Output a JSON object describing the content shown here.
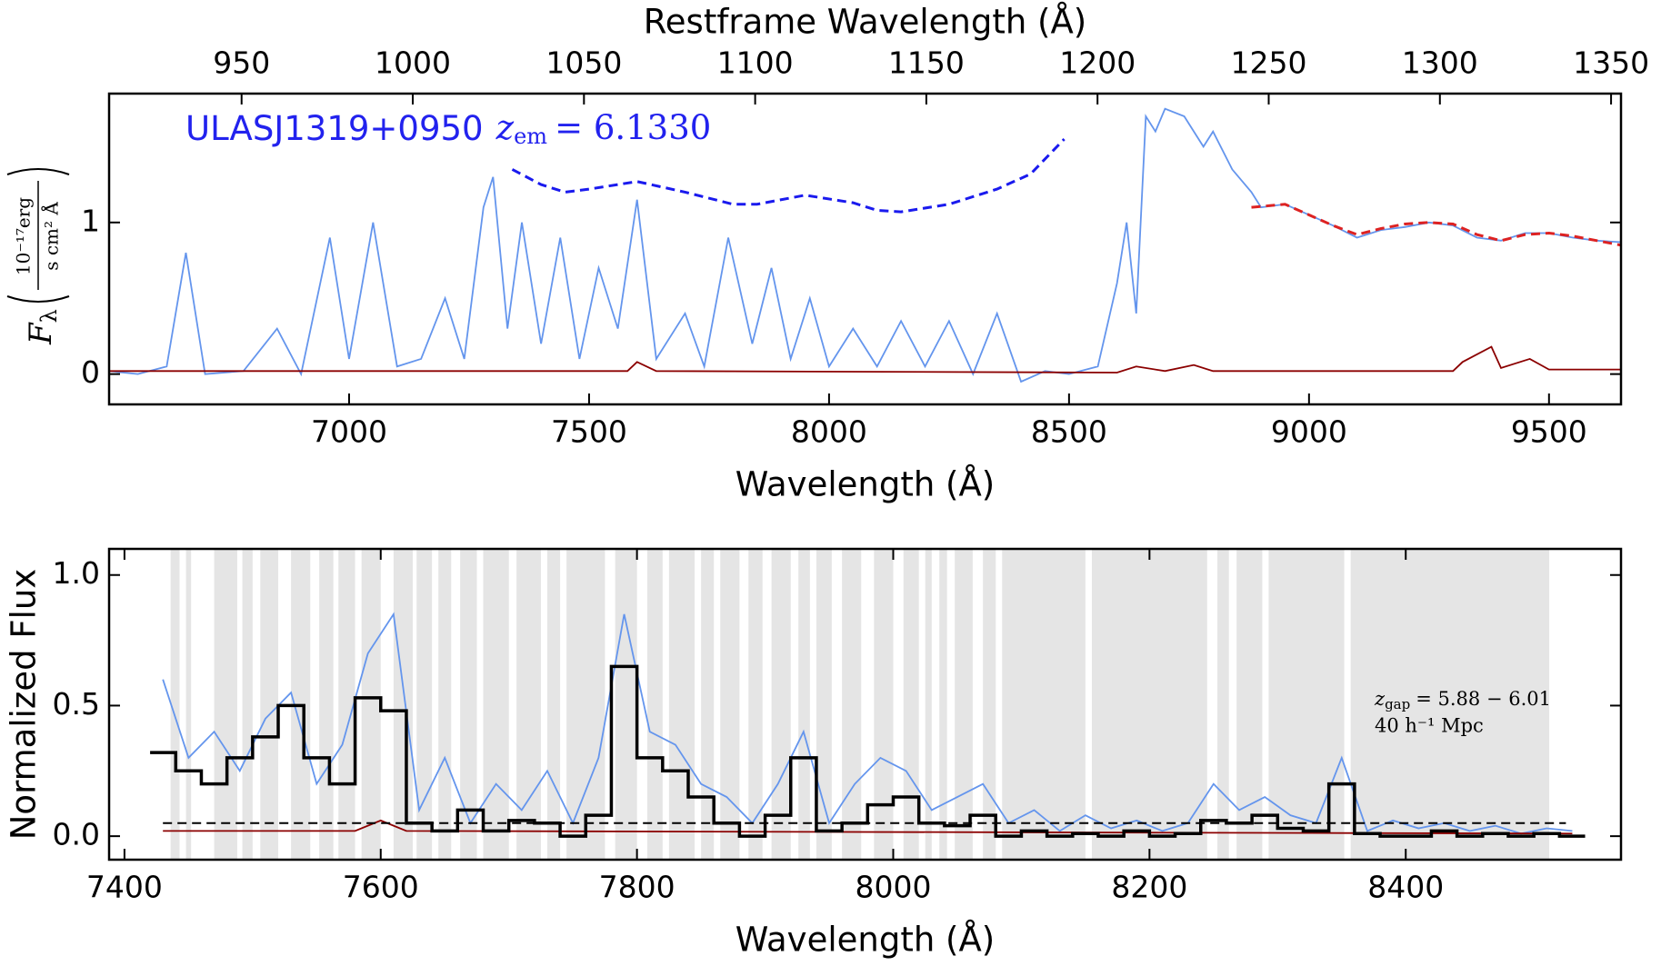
{
  "chart_data": [
    {
      "type": "line",
      "x2label": "Restframe Wavelength (Å)",
      "xlabel": "Wavelength (Å)",
      "ylabel": {
        "symbol": "F",
        "sub": "λ",
        "num": "10⁻¹⁷erg",
        "den": "s cm² Å"
      },
      "annotation": {
        "name": "ULASJ1319+0950",
        "symbol": "z",
        "sub": "em",
        "rel": "= 6.1330"
      },
      "xlim": [
        6500,
        9650
      ],
      "ylim": [
        -0.2,
        1.85
      ],
      "x2lim": [
        911.3,
        1352.9
      ],
      "xticks": [
        7000,
        7500,
        8000,
        8500,
        9000,
        9500
      ],
      "x2ticks": [
        950,
        {
          "value": 1000,
          "label": "1000"
        },
        1050,
        1100,
        1150,
        1200,
        1250,
        1300,
        1350
      ],
      "yticks": [
        0,
        1
      ],
      "series": [
        {
          "color": "#6495ed",
          "x": [
            6500,
            6560,
            6620,
            6660,
            6700,
            6780,
            6850,
            6900,
            6960,
            7000,
            7050,
            7100,
            7150,
            7200,
            7240,
            7280,
            7300,
            7330,
            7360,
            7400,
            7440,
            7480,
            7520,
            7560,
            7600,
            7640,
            7700,
            7740,
            7790,
            7840,
            7880,
            7920,
            7960,
            8000,
            8050,
            8100,
            8150,
            8200,
            8250,
            8300,
            8350,
            8400,
            8450,
            8500,
            8560,
            8600,
            8620,
            8640,
            8660,
            8680,
            8700,
            8740,
            8780,
            8800,
            8840,
            8880,
            8900,
            8950,
            9000,
            9050,
            9100,
            9150,
            9200,
            9250,
            9300,
            9350,
            9400,
            9450,
            9500,
            9550,
            9600,
            9650
          ],
          "values": [
            0.02,
            0.0,
            0.05,
            0.8,
            0.0,
            0.02,
            0.3,
            0.0,
            0.9,
            0.1,
            1.0,
            0.05,
            0.1,
            0.5,
            0.1,
            1.1,
            1.3,
            0.3,
            1.0,
            0.2,
            0.9,
            0.1,
            0.7,
            0.3,
            1.15,
            0.1,
            0.4,
            0.05,
            0.9,
            0.2,
            0.7,
            0.1,
            0.5,
            0.05,
            0.3,
            0.05,
            0.35,
            0.05,
            0.35,
            0.0,
            0.4,
            -0.05,
            0.02,
            0.0,
            0.05,
            0.6,
            1.0,
            0.4,
            1.7,
            1.6,
            1.75,
            1.7,
            1.5,
            1.6,
            1.35,
            1.2,
            1.1,
            1.12,
            1.05,
            0.98,
            0.9,
            0.95,
            0.97,
            1.0,
            0.98,
            0.9,
            0.88,
            0.93,
            0.93,
            0.9,
            0.88,
            0.87
          ]
        },
        {
          "color": "#8b0000",
          "x": [
            6500,
            7000,
            7580,
            7600,
            7640,
            8600,
            8640,
            8700,
            8760,
            8800,
            9300,
            9320,
            9380,
            9400,
            9460,
            9500,
            9650
          ],
          "values": [
            0.02,
            0.02,
            0.02,
            0.08,
            0.02,
            0.01,
            0.05,
            0.02,
            0.06,
            0.02,
            0.02,
            0.08,
            0.18,
            0.04,
            0.1,
            0.03,
            0.03
          ]
        },
        {
          "color": "#dd2222",
          "dash": true,
          "x": [
            8880,
            8950,
            9000,
            9050,
            9100,
            9150,
            9200,
            9250,
            9300,
            9350,
            9400,
            9450,
            9500,
            9550,
            9600,
            9650
          ],
          "values": [
            1.1,
            1.12,
            1.05,
            0.98,
            0.92,
            0.96,
            0.99,
            1.0,
            0.99,
            0.92,
            0.88,
            0.92,
            0.93,
            0.91,
            0.88,
            0.85
          ]
        },
        {
          "color": "#1a1aee",
          "dash": true,
          "x": [
            7340,
            7400,
            7450,
            7500,
            7600,
            7700,
            7800,
            7850,
            7950,
            8050,
            8100,
            8150,
            8250,
            8350,
            8420,
            8490
          ],
          "values": [
            1.35,
            1.25,
            1.2,
            1.22,
            1.27,
            1.2,
            1.12,
            1.12,
            1.18,
            1.13,
            1.08,
            1.07,
            1.12,
            1.22,
            1.32,
            1.55
          ]
        }
      ]
    },
    {
      "type": "line",
      "xlabel": "Wavelength (Å)",
      "ylabel": "Normalized Flux",
      "annotation": {
        "symbol": "z",
        "sub": "gap",
        "rel": "= 5.88 − 6.01",
        "scale": "40 h⁻¹ Mpc"
      },
      "xlim": [
        7388,
        8568
      ],
      "ylim": [
        -0.09,
        1.1
      ],
      "xticks": [
        7400,
        7600,
        7800,
        8000,
        8200,
        8400
      ],
      "yticks": [
        {
          "value": 0,
          "label": "0.0"
        },
        0.5,
        {
          "value": 1,
          "label": "1.0"
        }
      ],
      "bands": [
        [
          7436,
          7443
        ],
        [
          7448,
          7452
        ],
        [
          7470,
          7488
        ],
        [
          7492,
          7500
        ],
        [
          7506,
          7520
        ],
        [
          7530,
          7545
        ],
        [
          7552,
          7563
        ],
        [
          7567,
          7580
        ],
        [
          7585,
          7600
        ],
        [
          7610,
          7625
        ],
        [
          7628,
          7640
        ],
        [
          7645,
          7655
        ],
        [
          7662,
          7675
        ],
        [
          7680,
          7700
        ],
        [
          7706,
          7725
        ],
        [
          7730,
          7740
        ],
        [
          7745,
          7775
        ],
        [
          7783,
          7800
        ],
        [
          7808,
          7820
        ],
        [
          7825,
          7845
        ],
        [
          7850,
          7860
        ],
        [
          7865,
          7880
        ],
        [
          7887,
          7898
        ],
        [
          7905,
          7920
        ],
        [
          7926,
          7935
        ],
        [
          7940,
          7952
        ],
        [
          7960,
          7975
        ],
        [
          7985,
          8000
        ],
        [
          8008,
          8020
        ],
        [
          8025,
          8030
        ],
        [
          8036,
          8042
        ],
        [
          8048,
          8062
        ],
        [
          8070,
          8080
        ],
        [
          8085,
          8150
        ],
        [
          8155,
          8245
        ],
        [
          8253,
          8262
        ],
        [
          8268,
          8288
        ],
        [
          8293,
          8352
        ],
        [
          8357,
          8512
        ]
      ],
      "hline": {
        "y": 0.05,
        "x": [
          7430,
          8525
        ]
      },
      "series": [
        {
          "color": "#6495ed",
          "x": [
            7430,
            7450,
            7470,
            7490,
            7510,
            7530,
            7550,
            7570,
            7590,
            7610,
            7630,
            7650,
            7670,
            7690,
            7710,
            7730,
            7750,
            7770,
            7790,
            7810,
            7830,
            7850,
            7870,
            7890,
            7910,
            7930,
            7950,
            7970,
            7990,
            8010,
            8030,
            8050,
            8070,
            8090,
            8110,
            8130,
            8150,
            8170,
            8190,
            8210,
            8230,
            8250,
            8270,
            8290,
            8310,
            8330,
            8350,
            8370,
            8390,
            8410,
            8430,
            8450,
            8470,
            8490,
            8510,
            8530
          ],
          "values": [
            0.6,
            0.3,
            0.4,
            0.25,
            0.45,
            0.55,
            0.2,
            0.35,
            0.7,
            0.85,
            0.1,
            0.3,
            0.05,
            0.2,
            0.1,
            0.25,
            0.05,
            0.3,
            0.85,
            0.4,
            0.35,
            0.2,
            0.15,
            0.05,
            0.2,
            0.4,
            0.05,
            0.2,
            0.3,
            0.25,
            0.1,
            0.15,
            0.2,
            0.05,
            0.1,
            0.02,
            0.08,
            0.03,
            0.06,
            0.02,
            0.05,
            0.2,
            0.1,
            0.15,
            0.08,
            0.05,
            0.3,
            0.02,
            0.06,
            0.03,
            0.05,
            0.02,
            0.04,
            0.01,
            0.03,
            0.02
          ]
        },
        {
          "color": "#8b0000",
          "x": [
            7430,
            7580,
            7600,
            7620,
            8530
          ],
          "values": [
            0.02,
            0.02,
            0.06,
            0.02,
            0.01
          ]
        },
        {
          "color": "#000000",
          "step": true,
          "x": [
            7430,
            7450,
            7470,
            7490,
            7510,
            7530,
            7550,
            7570,
            7590,
            7610,
            7630,
            7650,
            7670,
            7690,
            7710,
            7730,
            7750,
            7770,
            7790,
            7810,
            7830,
            7850,
            7870,
            7890,
            7910,
            7930,
            7950,
            7970,
            7990,
            8010,
            8030,
            8050,
            8070,
            8090,
            8110,
            8130,
            8150,
            8170,
            8190,
            8210,
            8230,
            8250,
            8270,
            8290,
            8310,
            8330,
            8350,
            8370,
            8390,
            8410,
            8430,
            8450,
            8470,
            8490,
            8510,
            8530
          ],
          "values": [
            0.32,
            0.25,
            0.2,
            0.3,
            0.38,
            0.5,
            0.3,
            0.2,
            0.53,
            0.48,
            0.05,
            0.02,
            0.1,
            0.02,
            0.06,
            0.05,
            0.0,
            0.08,
            0.65,
            0.3,
            0.25,
            0.15,
            0.05,
            0.0,
            0.08,
            0.3,
            0.02,
            0.05,
            0.12,
            0.15,
            0.05,
            0.04,
            0.08,
            0.0,
            0.02,
            0.0,
            0.01,
            0.0,
            0.02,
            0.0,
            0.01,
            0.06,
            0.05,
            0.08,
            0.03,
            0.02,
            0.2,
            0.01,
            0.0,
            0.0,
            0.02,
            0.0,
            0.01,
            0.0,
            0.01,
            0.0
          ]
        }
      ]
    }
  ]
}
